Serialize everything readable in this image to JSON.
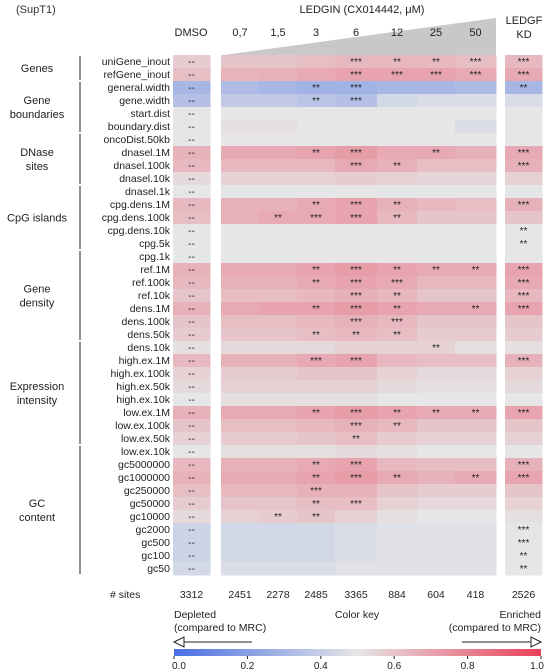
{
  "cell_line": "(SupT1)",
  "header": {
    "dmso": "DMSO",
    "ledgin": "LEDGIN (CX014442, μM)",
    "doses": [
      "0,7",
      "1,5",
      "3",
      "6",
      "12",
      "25",
      "50"
    ],
    "kd_line1": "LEDGF",
    "kd_line2": "KD"
  },
  "groups": [
    {
      "lines": [
        "Genes"
      ],
      "rows": [
        0,
        1
      ]
    },
    {
      "lines": [
        "Gene",
        "boundaries"
      ],
      "rows": [
        2,
        5
      ]
    },
    {
      "lines": [
        "DNase",
        "sites"
      ],
      "rows": [
        6,
        9
      ]
    },
    {
      "lines": [
        "CpG islands"
      ],
      "rows": [
        10,
        14
      ]
    },
    {
      "lines": [
        "Gene",
        "density"
      ],
      "rows": [
        15,
        21
      ]
    },
    {
      "lines": [
        "Expression",
        "intensity"
      ],
      "rows": [
        22,
        29
      ]
    },
    {
      "lines": [
        "GC",
        "content"
      ],
      "rows": [
        30,
        39
      ]
    }
  ],
  "sites": {
    "label": "# sites",
    "dmso": "3312",
    "ledgin": [
      "2451",
      "2278",
      "2485",
      "3365",
      "884",
      "604",
      "418"
    ],
    "kd": "2526"
  },
  "color_key": {
    "title": "Color key",
    "depleted_line1": "Depleted",
    "depleted_line2": "(compared to MRC)",
    "enriched_line1": "Enriched",
    "enriched_line2": "(compared to MRC)",
    "ticks": [
      "0.0",
      "0.2",
      "0.4",
      "0.6",
      "0.8",
      "1.0"
    ],
    "low_color": "#4a6fe3",
    "mid_color": "#e6e6e6",
    "high_color": "#e8405a"
  },
  "chart_data": {
    "type": "heatmap",
    "columns": [
      "DMSO",
      "0,7",
      "1,5",
      "3",
      "6",
      "12",
      "25",
      "50",
      "LEDGF KD"
    ],
    "value_range": [
      0,
      1
    ],
    "rows": [
      {
        "label": "uniGene_inout",
        "values": [
          0.58,
          0.6,
          0.6,
          0.62,
          0.64,
          0.64,
          0.64,
          0.62,
          0.64
        ],
        "sig": [
          "--",
          "",
          "",
          "",
          "***",
          "**",
          "**",
          "***",
          "***"
        ]
      },
      {
        "label": "refGene_inout",
        "values": [
          0.62,
          0.65,
          0.66,
          0.68,
          0.7,
          0.7,
          0.7,
          0.68,
          0.68
        ],
        "sig": [
          "--",
          "",
          "",
          "",
          "***",
          "***",
          "***",
          "***",
          "***"
        ]
      },
      {
        "label": "general.width",
        "values": [
          0.3,
          0.32,
          0.3,
          0.28,
          0.28,
          0.3,
          0.3,
          0.32,
          0.3
        ],
        "sig": [
          "--",
          "",
          "",
          "**",
          "***",
          "",
          "",
          "",
          "**"
        ]
      },
      {
        "label": "gene.width",
        "values": [
          0.34,
          0.38,
          0.38,
          0.36,
          0.34,
          0.44,
          0.46,
          0.46,
          0.46
        ],
        "sig": [
          "--",
          "",
          "",
          "**",
          "***",
          "",
          "",
          "",
          ""
        ]
      },
      {
        "label": "start.dist",
        "values": [
          0.5,
          0.5,
          0.5,
          0.5,
          0.5,
          0.5,
          0.5,
          0.5,
          0.5
        ],
        "sig": [
          "--",
          "",
          "",
          "",
          "",
          "",
          "",
          "",
          ""
        ]
      },
      {
        "label": "boundary.dist",
        "values": [
          0.5,
          0.52,
          0.52,
          0.5,
          0.5,
          0.5,
          0.5,
          0.46,
          0.5
        ],
        "sig": [
          "--",
          "",
          "",
          "",
          "",
          "",
          "",
          "",
          ""
        ]
      },
      {
        "label": "oncoDist.50kb",
        "values": [
          0.5,
          0.5,
          0.5,
          0.5,
          0.5,
          0.5,
          0.5,
          0.5,
          0.5
        ],
        "sig": [
          "--",
          "",
          "",
          "",
          "",
          "",
          "",
          "",
          ""
        ]
      },
      {
        "label": "dnasel.1M",
        "values": [
          0.66,
          0.68,
          0.68,
          0.7,
          0.72,
          0.68,
          0.68,
          0.66,
          0.68
        ],
        "sig": [
          "--",
          "",
          "",
          "**",
          "***",
          "",
          "**",
          "",
          "***"
        ]
      },
      {
        "label": "dnasel.100k",
        "values": [
          0.64,
          0.64,
          0.64,
          0.64,
          0.68,
          0.66,
          0.62,
          0.62,
          0.66
        ],
        "sig": [
          "--",
          "",
          "",
          "",
          "***",
          "**",
          "",
          "",
          "***"
        ]
      },
      {
        "label": "dnasel.10k",
        "values": [
          0.54,
          0.56,
          0.56,
          0.56,
          0.58,
          0.56,
          0.55,
          0.55,
          0.56
        ],
        "sig": [
          "--",
          "",
          "",
          "",
          "",
          "",
          "",
          "",
          ""
        ]
      },
      {
        "label": "dnasel.1k",
        "values": [
          0.5,
          0.5,
          0.5,
          0.5,
          0.5,
          0.5,
          0.5,
          0.5,
          0.5
        ],
        "sig": [
          "--",
          "",
          "",
          "",
          "",
          "",
          "",
          "",
          ""
        ]
      },
      {
        "label": "cpg.dens.1M",
        "values": [
          0.64,
          0.66,
          0.66,
          0.68,
          0.7,
          0.66,
          0.64,
          0.62,
          0.66
        ],
        "sig": [
          "--",
          "",
          "",
          "**",
          "***",
          "**",
          "",
          "",
          "***"
        ]
      },
      {
        "label": "cpg.dens.100k",
        "values": [
          0.62,
          0.66,
          0.68,
          0.68,
          0.7,
          0.64,
          0.6,
          0.6,
          0.6
        ],
        "sig": [
          "--",
          "",
          "**",
          "***",
          "***",
          "**",
          "",
          "",
          ""
        ]
      },
      {
        "label": "cpg.dens.10k",
        "values": [
          0.5,
          0.5,
          0.5,
          0.5,
          0.5,
          0.5,
          0.5,
          0.5,
          0.5
        ],
        "sig": [
          "--",
          "",
          "",
          "",
          "",
          "",
          "",
          "",
          "**"
        ]
      },
      {
        "label": "cpg.5k",
        "values": [
          0.5,
          0.5,
          0.5,
          0.5,
          0.5,
          0.5,
          0.5,
          0.5,
          0.5
        ],
        "sig": [
          "--",
          "",
          "",
          "",
          "",
          "",
          "",
          "",
          "**"
        ]
      },
      {
        "label": "cpg.1k",
        "values": [
          0.5,
          0.5,
          0.5,
          0.5,
          0.5,
          0.5,
          0.5,
          0.5,
          0.5
        ],
        "sig": [
          "--",
          "",
          "",
          "",
          "",
          "",
          "",
          "",
          ""
        ]
      },
      {
        "label": "ref.1M",
        "values": [
          0.66,
          0.68,
          0.68,
          0.7,
          0.72,
          0.7,
          0.68,
          0.68,
          0.7
        ],
        "sig": [
          "--",
          "",
          "",
          "**",
          "***",
          "**",
          "**",
          "**",
          "***"
        ]
      },
      {
        "label": "ref.100k",
        "values": [
          0.64,
          0.66,
          0.66,
          0.68,
          0.7,
          0.68,
          0.64,
          0.64,
          0.68
        ],
        "sig": [
          "--",
          "",
          "",
          "**",
          "***",
          "***",
          "",
          "",
          "***"
        ]
      },
      {
        "label": "ref.10k",
        "values": [
          0.6,
          0.62,
          0.62,
          0.64,
          0.66,
          0.64,
          0.6,
          0.6,
          0.64
        ],
        "sig": [
          "--",
          "",
          "",
          "",
          "***",
          "**",
          "",
          "",
          "***"
        ]
      },
      {
        "label": "dens.1M",
        "values": [
          0.66,
          0.68,
          0.7,
          0.7,
          0.72,
          0.7,
          0.68,
          0.68,
          0.7
        ],
        "sig": [
          "--",
          "",
          "",
          "**",
          "***",
          "**",
          "",
          "**",
          "***"
        ]
      },
      {
        "label": "dens.100k",
        "values": [
          0.6,
          0.62,
          0.62,
          0.64,
          0.66,
          0.64,
          0.6,
          0.6,
          0.6
        ],
        "sig": [
          "--",
          "",
          "",
          "",
          "***",
          "***",
          "",
          "",
          ""
        ]
      },
      {
        "label": "dens.50k",
        "values": [
          0.58,
          0.6,
          0.6,
          0.62,
          0.64,
          0.62,
          0.58,
          0.58,
          0.58
        ],
        "sig": [
          "--",
          "",
          "",
          "**",
          "**",
          "**",
          "",
          "",
          ""
        ]
      },
      {
        "label": "dens.10k",
        "values": [
          0.52,
          0.54,
          0.54,
          0.54,
          0.56,
          0.56,
          0.56,
          0.52,
          0.52
        ],
        "sig": [
          "--",
          "",
          "",
          "",
          "",
          "",
          "**",
          "",
          ""
        ]
      },
      {
        "label": "high.ex.1M",
        "values": [
          0.64,
          0.66,
          0.66,
          0.68,
          0.7,
          0.64,
          0.62,
          0.62,
          0.66
        ],
        "sig": [
          "--",
          "",
          "",
          "***",
          "***",
          "",
          "",
          "",
          "***"
        ]
      },
      {
        "label": "high.ex.100k",
        "values": [
          0.56,
          0.58,
          0.58,
          0.6,
          0.6,
          0.56,
          0.54,
          0.54,
          0.56
        ],
        "sig": [
          "--",
          "",
          "",
          "",
          "",
          "",
          "",
          "",
          ""
        ]
      },
      {
        "label": "high.ex.50k",
        "values": [
          0.54,
          0.56,
          0.56,
          0.56,
          0.56,
          0.54,
          0.52,
          0.52,
          0.54
        ],
        "sig": [
          "--",
          "",
          "",
          "",
          "",
          "",
          "",
          "",
          ""
        ]
      },
      {
        "label": "high.ex.10k",
        "values": [
          0.5,
          0.52,
          0.52,
          0.52,
          0.52,
          0.5,
          0.5,
          0.5,
          0.5
        ],
        "sig": [
          "--",
          "",
          "",
          "",
          "",
          "",
          "",
          "",
          ""
        ]
      },
      {
        "label": "low.ex.1M",
        "values": [
          0.66,
          0.68,
          0.68,
          0.7,
          0.72,
          0.7,
          0.68,
          0.68,
          0.7
        ],
        "sig": [
          "--",
          "",
          "",
          "**",
          "***",
          "**",
          "**",
          "**",
          "***"
        ]
      },
      {
        "label": "low.ex.100k",
        "values": [
          0.6,
          0.62,
          0.62,
          0.64,
          0.66,
          0.64,
          0.6,
          0.6,
          0.6
        ],
        "sig": [
          "--",
          "",
          "",
          "",
          "***",
          "**",
          "",
          "",
          ""
        ]
      },
      {
        "label": "low.ex.50k",
        "values": [
          0.56,
          0.58,
          0.58,
          0.6,
          0.62,
          0.58,
          0.56,
          0.56,
          0.56
        ],
        "sig": [
          "--",
          "",
          "",
          "",
          "**",
          "",
          "",
          "",
          ""
        ]
      },
      {
        "label": "low.ex.10k",
        "values": [
          0.5,
          0.52,
          0.52,
          0.52,
          0.54,
          0.52,
          0.5,
          0.5,
          0.5
        ],
        "sig": [
          "--",
          "",
          "",
          "",
          "",
          "",
          "",
          "",
          ""
        ]
      },
      {
        "label": "gc5000000",
        "values": [
          0.64,
          0.66,
          0.66,
          0.68,
          0.7,
          0.64,
          0.62,
          0.62,
          0.66
        ],
        "sig": [
          "--",
          "",
          "",
          "**",
          "***",
          "",
          "",
          "",
          "***"
        ]
      },
      {
        "label": "gc1000000",
        "values": [
          0.66,
          0.68,
          0.68,
          0.7,
          0.72,
          0.68,
          0.66,
          0.68,
          0.7
        ],
        "sig": [
          "--",
          "",
          "",
          "**",
          "***",
          "**",
          "",
          "**",
          "***"
        ]
      },
      {
        "label": "gc250000",
        "values": [
          0.62,
          0.64,
          0.64,
          0.66,
          0.66,
          0.6,
          0.58,
          0.58,
          0.6
        ],
        "sig": [
          "--",
          "",
          "",
          "***",
          "",
          "",
          "",
          "",
          ""
        ]
      },
      {
        "label": "gc50000",
        "values": [
          0.58,
          0.6,
          0.6,
          0.62,
          0.62,
          0.56,
          0.54,
          0.54,
          0.56
        ],
        "sig": [
          "--",
          "",
          "",
          "**",
          "***",
          "",
          "",
          "",
          ""
        ]
      },
      {
        "label": "gc10000",
        "values": [
          0.54,
          0.56,
          0.58,
          0.6,
          0.56,
          0.52,
          0.5,
          0.5,
          0.52
        ],
        "sig": [
          "--",
          "",
          "**",
          "**",
          "",
          "",
          "",
          "",
          ""
        ]
      },
      {
        "label": "gc2000",
        "values": [
          0.42,
          0.44,
          0.44,
          0.44,
          0.46,
          0.48,
          0.48,
          0.48,
          0.5
        ],
        "sig": [
          "--",
          "",
          "",
          "",
          "",
          "",
          "",
          "",
          "***"
        ]
      },
      {
        "label": "gc500",
        "values": [
          0.42,
          0.44,
          0.44,
          0.44,
          0.46,
          0.48,
          0.48,
          0.48,
          0.5
        ],
        "sig": [
          "--",
          "",
          "",
          "",
          "",
          "",
          "",
          "",
          "***"
        ]
      },
      {
        "label": "gc100",
        "values": [
          0.42,
          0.44,
          0.44,
          0.44,
          0.46,
          0.48,
          0.48,
          0.48,
          0.5
        ],
        "sig": [
          "--",
          "",
          "",
          "",
          "",
          "",
          "",
          "",
          "**"
        ]
      },
      {
        "label": "gc50",
        "values": [
          0.44,
          0.46,
          0.46,
          0.46,
          0.48,
          0.48,
          0.48,
          0.48,
          0.5
        ],
        "sig": [
          "--",
          "",
          "",
          "",
          "",
          "",
          "",
          "",
          "**"
        ]
      }
    ]
  }
}
